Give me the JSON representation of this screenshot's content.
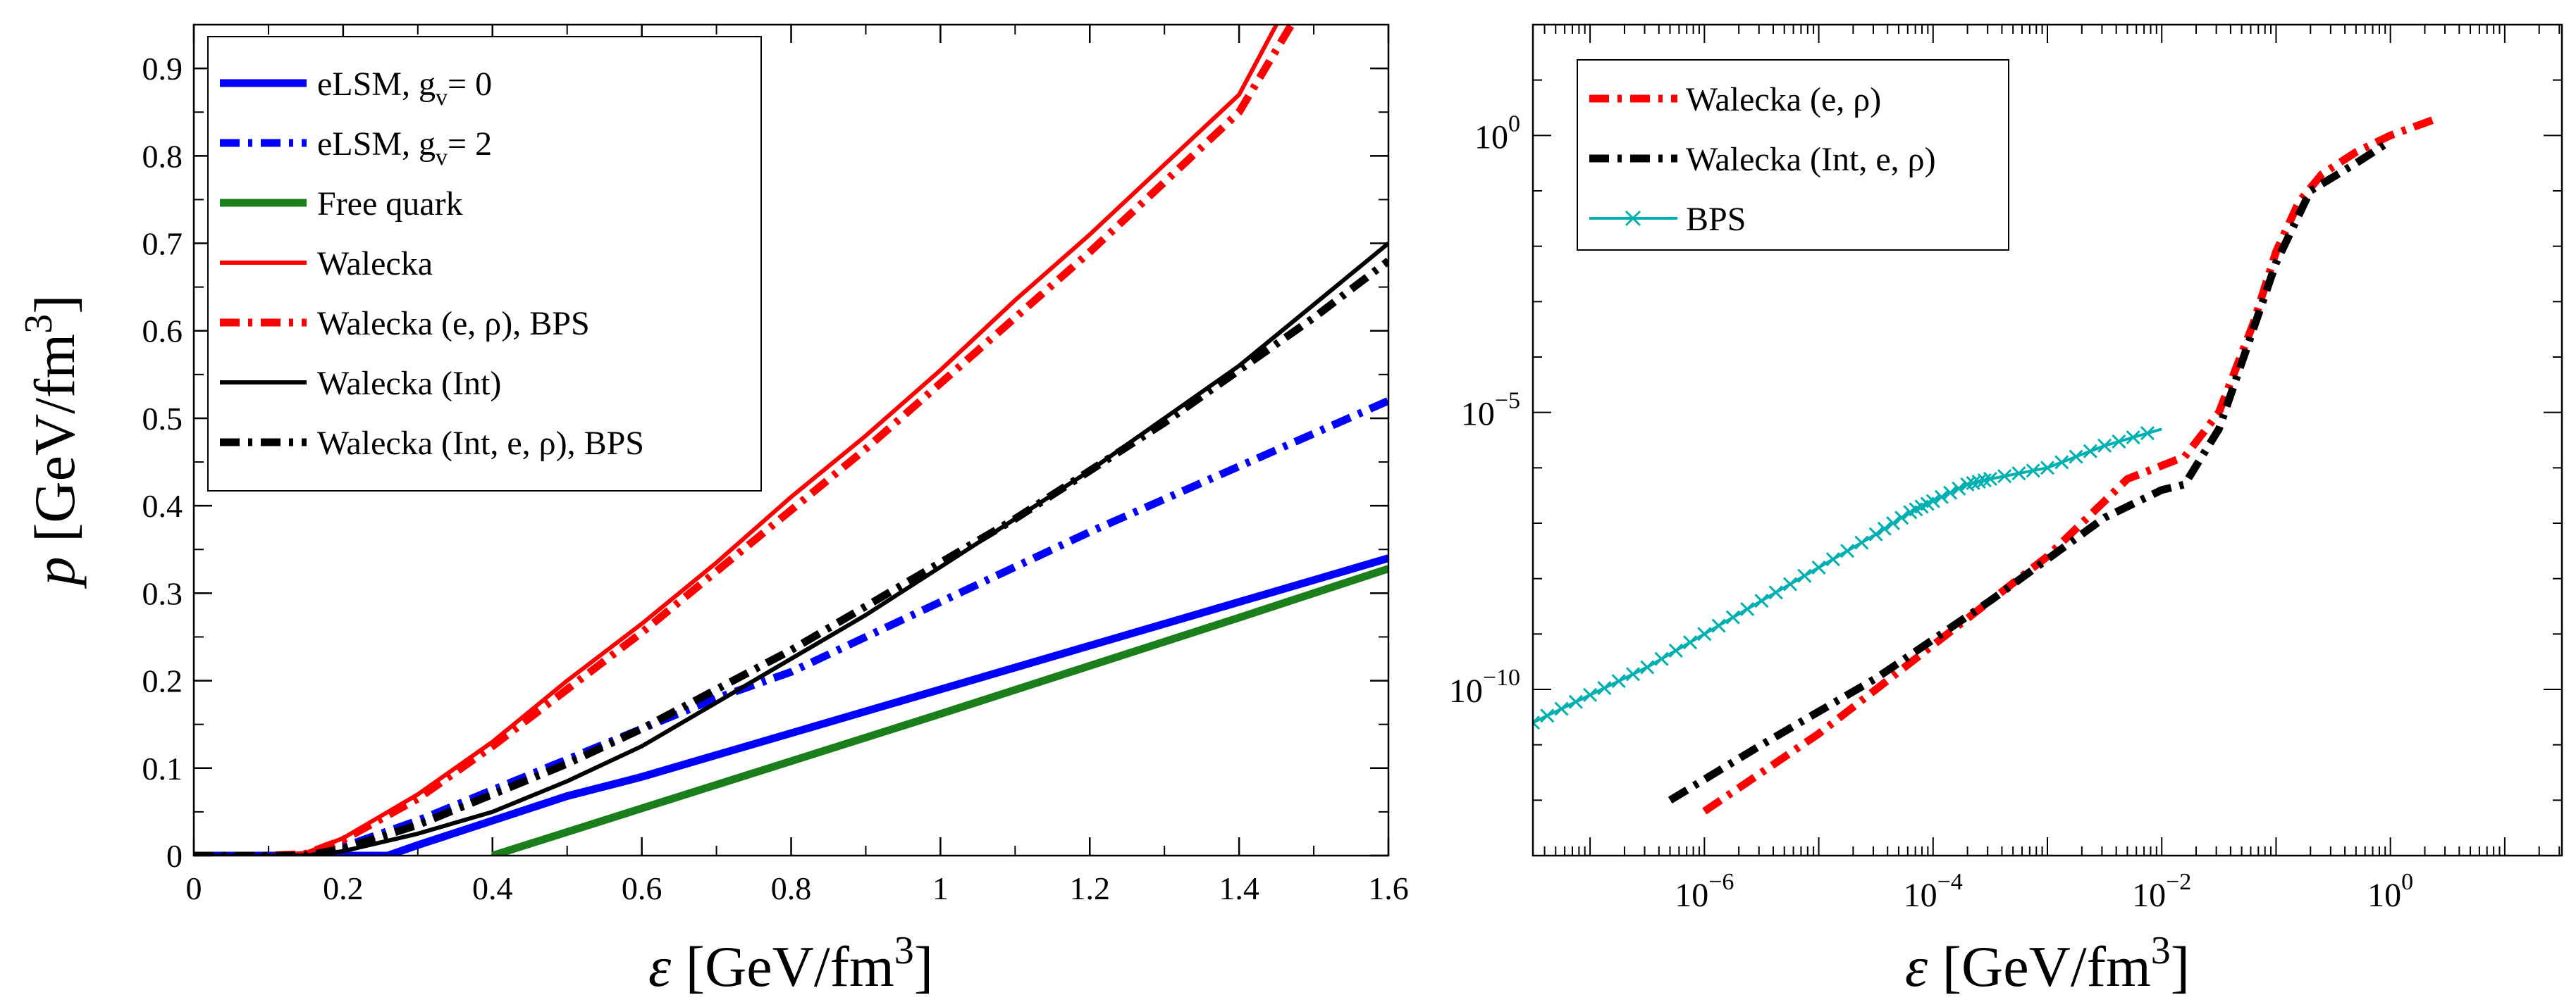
{
  "chart_data": [
    {
      "type": "line",
      "xlabel": "ε [GeV/fm³]",
      "ylabel": "p [GeV/fm³]",
      "xlim": [
        0,
        1.6
      ],
      "ylim": [
        0,
        0.95
      ],
      "xticks": [
        "0",
        "0.2",
        "0.4",
        "0.6",
        "0.8",
        "1",
        "1.2",
        "1.4",
        "1.6"
      ],
      "xtick_values": [
        0,
        0.2,
        0.4,
        0.6,
        0.8,
        1.0,
        1.2,
        1.4,
        1.6
      ],
      "yticks": [
        "0",
        "0.1",
        "0.2",
        "0.3",
        "0.4",
        "0.5",
        "0.6",
        "0.7",
        "0.8",
        "0.9"
      ],
      "ytick_values": [
        0,
        0.1,
        0.2,
        0.3,
        0.4,
        0.5,
        0.6,
        0.7,
        0.8,
        0.9
      ],
      "legend_position": "top-left",
      "series": [
        {
          "name": "eLSM, g_v = 0",
          "legend_text": "eLSM, g",
          "legend_sub": "v",
          "legend_tail": "= 0",
          "color": "#0000ff",
          "style": "solid",
          "weight": "thick",
          "x": [
            0.0,
            0.2,
            0.26,
            0.3,
            0.4,
            0.5,
            0.6,
            0.8,
            1.0,
            1.2,
            1.4,
            1.6
          ],
          "y": [
            0.0,
            0.0,
            0.0,
            0.012,
            0.04,
            0.068,
            0.09,
            0.14,
            0.19,
            0.24,
            0.29,
            0.34
          ]
        },
        {
          "name": "eLSM, g_v = 2",
          "legend_text": "eLSM, g",
          "legend_sub": "v",
          "legend_tail": "= 2",
          "color": "#0000ff",
          "style": "dashdot",
          "weight": "thick",
          "x": [
            0.0,
            0.15,
            0.2,
            0.3,
            0.4,
            0.5,
            0.6,
            0.7,
            0.8,
            1.0,
            1.2,
            1.4,
            1.6
          ],
          "y": [
            0.0,
            0.0,
            0.01,
            0.04,
            0.075,
            0.11,
            0.145,
            0.18,
            0.21,
            0.29,
            0.37,
            0.445,
            0.52
          ]
        },
        {
          "name": "Free quark",
          "legend_text": "Free quark",
          "color": "#1a7f1a",
          "style": "solid",
          "weight": "thick",
          "x": [
            0.4,
            0.6,
            0.8,
            1.0,
            1.2,
            1.4,
            1.6
          ],
          "y": [
            0.0,
            0.054,
            0.108,
            0.162,
            0.217,
            0.272,
            0.328
          ]
        },
        {
          "name": "Walecka",
          "legend_text": "Walecka",
          "color": "#ff0000",
          "style": "solid",
          "weight": "normal",
          "x": [
            0.0,
            0.1,
            0.15,
            0.2,
            0.3,
            0.4,
            0.5,
            0.6,
            0.7,
            0.8,
            0.9,
            1.0,
            1.1,
            1.2,
            1.3,
            1.4,
            1.45
          ],
          "y": [
            0.0,
            0.0,
            0.003,
            0.02,
            0.07,
            0.13,
            0.2,
            0.265,
            0.335,
            0.41,
            0.48,
            0.555,
            0.635,
            0.71,
            0.79,
            0.87,
            0.95
          ]
        },
        {
          "name": "Walecka (e, ρ), BPS",
          "legend_text": "Walecka (e, ρ), BPS",
          "color": "#ff0000",
          "style": "dashdot",
          "weight": "thick",
          "x": [
            0.0,
            0.1,
            0.15,
            0.2,
            0.3,
            0.4,
            0.5,
            0.6,
            0.7,
            0.8,
            0.9,
            1.0,
            1.1,
            1.2,
            1.3,
            1.4,
            1.47
          ],
          "y": [
            0.0,
            0.0,
            0.002,
            0.018,
            0.065,
            0.125,
            0.19,
            0.255,
            0.325,
            0.395,
            0.465,
            0.54,
            0.615,
            0.69,
            0.77,
            0.85,
            0.95
          ]
        },
        {
          "name": "Walecka (Int)",
          "legend_text": "Walecka (Int)",
          "color": "#000000",
          "style": "solid",
          "weight": "normal",
          "x": [
            0.0,
            0.15,
            0.2,
            0.3,
            0.4,
            0.5,
            0.6,
            0.7,
            0.8,
            0.9,
            1.0,
            1.1,
            1.2,
            1.3,
            1.4,
            1.5,
            1.6
          ],
          "y": [
            0.0,
            0.0,
            0.005,
            0.025,
            0.05,
            0.085,
            0.125,
            0.175,
            0.225,
            0.275,
            0.33,
            0.385,
            0.44,
            0.5,
            0.56,
            0.63,
            0.7
          ]
        },
        {
          "name": "Walecka (Int, e, ρ), BPS",
          "legend_text": "Walecka (Int, e, ρ), BPS",
          "color": "#000000",
          "style": "dashdot",
          "weight": "thick",
          "x": [
            0.0,
            0.15,
            0.2,
            0.3,
            0.4,
            0.5,
            0.6,
            0.7,
            0.8,
            0.9,
            1.0,
            1.1,
            1.2,
            1.3,
            1.4,
            1.5,
            1.6
          ],
          "y": [
            0.0,
            0.0,
            0.008,
            0.035,
            0.07,
            0.105,
            0.145,
            0.19,
            0.235,
            0.285,
            0.335,
            0.385,
            0.44,
            0.495,
            0.555,
            0.615,
            0.68
          ]
        }
      ]
    },
    {
      "type": "line",
      "scale": "log-log",
      "xlabel": "ε [GeV/fm³]",
      "ylabel": "",
      "xlim_log10": [
        -7.5,
        1.5
      ],
      "ylim_log10": [
        -13,
        2
      ],
      "xticks": [
        {
          "base": "10",
          "exp": "−6",
          "log10": -6
        },
        {
          "base": "10",
          "exp": "−4",
          "log10": -4
        },
        {
          "base": "10",
          "exp": "−2",
          "log10": -2
        },
        {
          "base": "10",
          "exp": "0",
          "log10": 0
        }
      ],
      "yticks": [
        {
          "base": "10",
          "exp": "−10",
          "log10": -10
        },
        {
          "base": "10",
          "exp": "−5",
          "log10": -5
        },
        {
          "base": "10",
          "exp": "0",
          "log10": 0
        }
      ],
      "legend_position": "top-left",
      "series": [
        {
          "name": "Walecka (e, ρ)",
          "legend_text": "Walecka (e, ρ)",
          "color": "#ff0000",
          "style": "dashdot",
          "weight": "thick",
          "log10_x": [
            -6.0,
            -5.0,
            -4.0,
            -3.0,
            -2.3,
            -1.8,
            -1.5,
            -1.2,
            -1.0,
            -0.8,
            -0.6,
            -0.3,
            0.0,
            0.4
          ],
          "log10_y": [
            -12.2,
            -10.8,
            -9.2,
            -7.6,
            -6.2,
            -5.8,
            -5.0,
            -3.4,
            -2.1,
            -1.2,
            -0.7,
            -0.3,
            0.0,
            0.3
          ]
        },
        {
          "name": "Walecka (Int, e, ρ)",
          "legend_text": "Walecka (Int, e, ρ)",
          "color": "#000000",
          "style": "dashdot",
          "weight": "thick",
          "log10_x": [
            -6.3,
            -5.5,
            -4.5,
            -3.5,
            -2.5,
            -2.0,
            -1.8,
            -1.5,
            -1.2,
            -1.0,
            -0.7,
            -0.3,
            0.0
          ],
          "log10_y": [
            -12.0,
            -11.0,
            -9.8,
            -8.4,
            -6.9,
            -6.4,
            -6.3,
            -5.3,
            -3.5,
            -2.3,
            -1.0,
            -0.5,
            -0.1
          ]
        },
        {
          "name": "BPS",
          "legend_text": "BPS",
          "color": "#00b0b0",
          "style": "solid-x",
          "weight": "normal",
          "log10_x": [
            -7.5,
            -7.0,
            -6.5,
            -6.0,
            -5.5,
            -5.0,
            -4.5,
            -4.2,
            -4.0,
            -3.7,
            -3.5,
            -3.0,
            -2.5,
            -2.0
          ],
          "log10_y": [
            -10.6,
            -10.1,
            -9.6,
            -9.0,
            -8.4,
            -7.8,
            -7.2,
            -6.8,
            -6.6,
            -6.3,
            -6.2,
            -6.0,
            -5.6,
            -5.3
          ]
        }
      ]
    }
  ]
}
